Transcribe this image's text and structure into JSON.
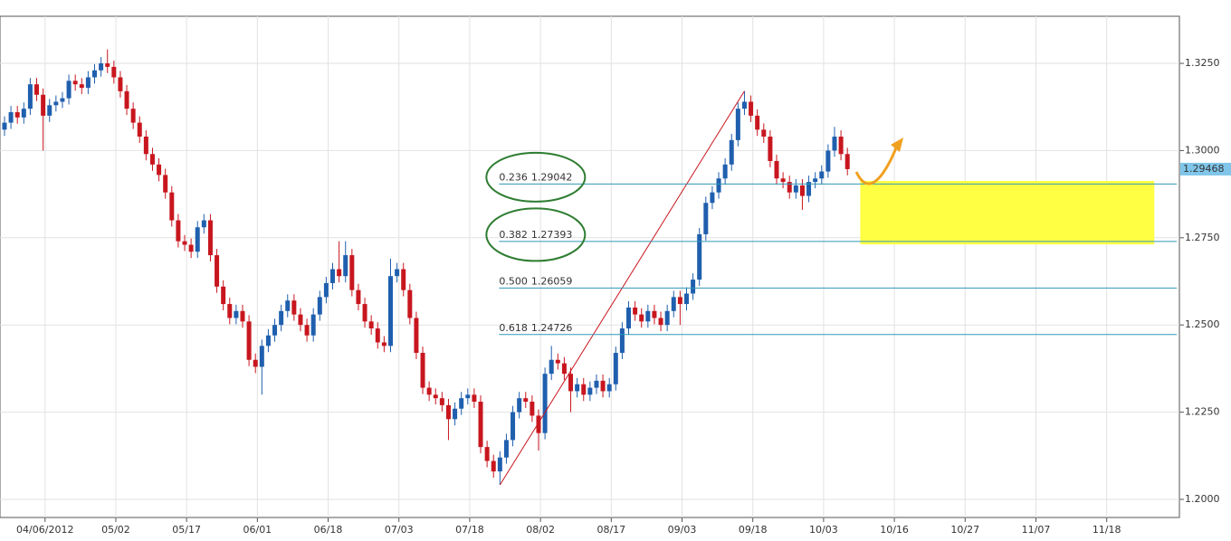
{
  "chart_data": {
    "type": "candlestick",
    "up_color": "#1f5fae",
    "down_color": "#c8161e",
    "grid": true,
    "xlim": [
      -0.7,
      182.6
    ],
    "xticks": [
      {
        "value": 6.3,
        "label": "04/06/2012"
      },
      {
        "value": 17.3,
        "label": "05/02"
      },
      {
        "value": 28.3,
        "label": "05/17"
      },
      {
        "value": 39.3,
        "label": "06/01"
      },
      {
        "value": 50.3,
        "label": "06/18"
      },
      {
        "value": 61.3,
        "label": "07/03"
      },
      {
        "value": 72.3,
        "label": "07/18"
      },
      {
        "value": 83.3,
        "label": "08/02"
      },
      {
        "value": 94.3,
        "label": "08/17"
      },
      {
        "value": 105.3,
        "label": "09/03"
      },
      {
        "value": 116.3,
        "label": "09/18"
      },
      {
        "value": 127.3,
        "label": "10/03"
      },
      {
        "value": 138.3,
        "label": "10/16"
      },
      {
        "value": 149.3,
        "label": "10/27"
      },
      {
        "value": 160.3,
        "label": "11/07"
      },
      {
        "value": 171.3,
        "label": "11/18"
      }
    ],
    "ylim": [
      1.1948,
      1.3385
    ],
    "yticks": [
      {
        "value": 1.2,
        "label": "1.2000"
      },
      {
        "value": 1.225,
        "label": "1.2250"
      },
      {
        "value": 1.25,
        "label": "1.2500"
      },
      {
        "value": 1.275,
        "label": "1.2750"
      },
      {
        "value": 1.3,
        "label": "1.3000"
      },
      {
        "value": 1.325,
        "label": "1.3250"
      }
    ],
    "open": [
      1.306,
      1.308,
      1.311,
      1.3095,
      1.312,
      1.319,
      1.316,
      1.31,
      1.313,
      1.314,
      1.315,
      1.32,
      1.319,
      1.318,
      1.321,
      1.323,
      1.325,
      1.324,
      1.321,
      1.317,
      1.312,
      1.308,
      1.304,
      1.299,
      1.296,
      1.293,
      1.288,
      1.28,
      1.274,
      1.273,
      1.271,
      1.278,
      1.28,
      1.27,
      1.261,
      1.256,
      1.252,
      1.254,
      1.251,
      1.24,
      1.238,
      1.244,
      1.247,
      1.25,
      1.254,
      1.257,
      1.253,
      1.25,
      1.247,
      1.253,
      1.258,
      1.262,
      1.266,
      1.264,
      1.27,
      1.26,
      1.256,
      1.251,
      1.249,
      1.245,
      1.244,
      1.264,
      1.266,
      1.26,
      1.252,
      1.242,
      1.232,
      1.23,
      1.229,
      1.227,
      1.223,
      1.226,
      1.229,
      1.23,
      1.228,
      1.215,
      1.211,
      1.208,
      1.212,
      1.217,
      1.225,
      1.229,
      1.228,
      1.224,
      1.219,
      1.236,
      1.24,
      1.239,
      1.236,
      1.231,
      1.233,
      1.23,
      1.232,
      1.234,
      1.231,
      1.233,
      1.242,
      1.249,
      1.255,
      1.253,
      1.251,
      1.254,
      1.252,
      1.25,
      1.254,
      1.258,
      1.256,
      1.259,
      1.263,
      1.276,
      1.285,
      1.288,
      1.292,
      1.296,
      1.303,
      1.312,
      1.314,
      1.31,
      1.306,
      1.304,
      1.297,
      1.292,
      1.291,
      1.288,
      1.29,
      1.287,
      1.291,
      1.292,
      1.294,
      1.3,
      1.304,
      1.299
    ],
    "high": [
      1.3098,
      1.3128,
      1.3128,
      1.3138,
      1.3208,
      1.3208,
      1.3178,
      1.3148,
      1.3158,
      1.3168,
      1.3218,
      1.3218,
      1.3208,
      1.3228,
      1.3248,
      1.3268,
      1.329,
      1.3258,
      1.3228,
      1.3188,
      1.3138,
      1.3098,
      1.3058,
      1.3008,
      1.2978,
      1.2948,
      1.2898,
      1.2818,
      1.2758,
      1.2748,
      1.2798,
      1.2818,
      1.2818,
      1.2718,
      1.2628,
      1.2578,
      1.2558,
      1.2558,
      1.2528,
      1.2418,
      1.2458,
      1.2488,
      1.2518,
      1.2558,
      1.2588,
      1.2588,
      1.2548,
      1.2518,
      1.2548,
      1.2598,
      1.2638,
      1.2678,
      1.274,
      1.274,
      1.2718,
      1.2618,
      1.2578,
      1.2528,
      1.2508,
      1.2468,
      1.269,
      1.2678,
      1.2678,
      1.2618,
      1.2538,
      1.2438,
      1.2338,
      1.2318,
      1.2308,
      1.2288,
      1.2278,
      1.2308,
      1.2318,
      1.2318,
      1.2298,
      1.2168,
      1.2128,
      1.2138,
      1.2188,
      1.2268,
      1.2308,
      1.2308,
      1.2298,
      1.2258,
      1.2378,
      1.244,
      1.2418,
      1.2408,
      1.2378,
      1.2348,
      1.2348,
      1.2338,
      1.2358,
      1.2358,
      1.2348,
      1.2438,
      1.2508,
      1.2568,
      1.2568,
      1.2548,
      1.2558,
      1.2558,
      1.2538,
      1.2558,
      1.2598,
      1.2598,
      1.2608,
      1.2648,
      1.2778,
      1.2868,
      1.2898,
      1.2938,
      1.2978,
      1.3048,
      1.3138,
      1.31708,
      1.3158,
      1.3118,
      1.3078,
      1.3058,
      1.2988,
      1.2938,
      1.2928,
      1.2918,
      1.2918,
      1.2928,
      1.2938,
      1.2958,
      1.3018,
      1.3068,
      1.3058,
      1.3008
    ],
    "low": [
      1.3042,
      1.3062,
      1.3077,
      1.3077,
      1.3102,
      1.3142,
      1.3,
      1.3082,
      1.3112,
      1.3122,
      1.3132,
      1.3172,
      1.3162,
      1.3162,
      1.3192,
      1.3212,
      1.3222,
      1.3192,
      1.3152,
      1.3102,
      1.3062,
      1.3022,
      1.2972,
      1.2942,
      1.2912,
      1.2862,
      1.2782,
      1.2722,
      1.2712,
      1.2692,
      1.2692,
      1.2762,
      1.2682,
      1.2592,
      1.2542,
      1.2502,
      1.2502,
      1.2492,
      1.2382,
      1.2362,
      1.23,
      1.2422,
      1.2452,
      1.2482,
      1.2522,
      1.2512,
      1.2482,
      1.2452,
      1.2452,
      1.2512,
      1.2562,
      1.2602,
      1.2622,
      1.2622,
      1.2582,
      1.2542,
      1.2492,
      1.2472,
      1.2432,
      1.2422,
      1.2422,
      1.2622,
      1.2582,
      1.2502,
      1.2402,
      1.2302,
      1.2282,
      1.2272,
      1.2252,
      1.217,
      1.2212,
      1.2242,
      1.2272,
      1.2262,
      1.2132,
      1.2092,
      1.2062,
      1.20413,
      1.2102,
      1.2152,
      1.2232,
      1.2262,
      1.2222,
      1.214,
      1.2172,
      1.2342,
      1.2372,
      1.2342,
      1.225,
      1.2292,
      1.2282,
      1.2282,
      1.2302,
      1.2292,
      1.2292,
      1.2312,
      1.2402,
      1.2472,
      1.2512,
      1.2492,
      1.2492,
      1.2502,
      1.2482,
      1.2482,
      1.2522,
      1.25,
      1.2542,
      1.2572,
      1.2612,
      1.2742,
      1.2832,
      1.2862,
      1.2902,
      1.2942,
      1.3012,
      1.3102,
      1.3082,
      1.3042,
      1.3022,
      1.2952,
      1.2902,
      1.2892,
      1.2862,
      1.2862,
      1.283,
      1.2852,
      1.2892,
      1.2902,
      1.2922,
      1.2982,
      1.2972,
      1.2929
    ],
    "close": [
      1.308,
      1.311,
      1.3095,
      1.312,
      1.319,
      1.316,
      1.31,
      1.313,
      1.314,
      1.315,
      1.32,
      1.319,
      1.318,
      1.321,
      1.323,
      1.325,
      1.324,
      1.321,
      1.317,
      1.312,
      1.308,
      1.304,
      1.299,
      1.296,
      1.293,
      1.288,
      1.28,
      1.274,
      1.273,
      1.271,
      1.278,
      1.28,
      1.27,
      1.261,
      1.256,
      1.252,
      1.254,
      1.251,
      1.24,
      1.238,
      1.244,
      1.247,
      1.25,
      1.254,
      1.257,
      1.253,
      1.25,
      1.247,
      1.253,
      1.258,
      1.262,
      1.266,
      1.264,
      1.27,
      1.26,
      1.256,
      1.251,
      1.249,
      1.245,
      1.244,
      1.264,
      1.266,
      1.26,
      1.252,
      1.242,
      1.232,
      1.23,
      1.229,
      1.227,
      1.223,
      1.226,
      1.229,
      1.23,
      1.228,
      1.215,
      1.211,
      1.208,
      1.212,
      1.217,
      1.225,
      1.229,
      1.228,
      1.224,
      1.219,
      1.236,
      1.24,
      1.239,
      1.236,
      1.231,
      1.233,
      1.23,
      1.232,
      1.234,
      1.231,
      1.233,
      1.242,
      1.249,
      1.255,
      1.253,
      1.251,
      1.254,
      1.252,
      1.25,
      1.254,
      1.258,
      1.256,
      1.259,
      1.263,
      1.276,
      1.285,
      1.288,
      1.292,
      1.296,
      1.303,
      1.312,
      1.314,
      1.31,
      1.306,
      1.304,
      1.297,
      1.292,
      1.291,
      1.288,
      1.29,
      1.287,
      1.291,
      1.292,
      1.294,
      1.3,
      1.304,
      1.299,
      1.29468
    ],
    "fib_levels": [
      {
        "ratio": 0.236,
        "value": 1.29042
      },
      {
        "ratio": 0.382,
        "value": 1.27393
      },
      {
        "ratio": {
          "value": 0.5,
          "label": "0.500"
        },
        "value": 1.26059
      },
      {
        "ratio": 0.618,
        "value": 1.24726
      }
    ],
    "zone": {
      "x": [
        133,
        178.7
      ],
      "y": [
        1.2731,
        1.2913
      ],
      "color": "#ffff44"
    }
  }
}
